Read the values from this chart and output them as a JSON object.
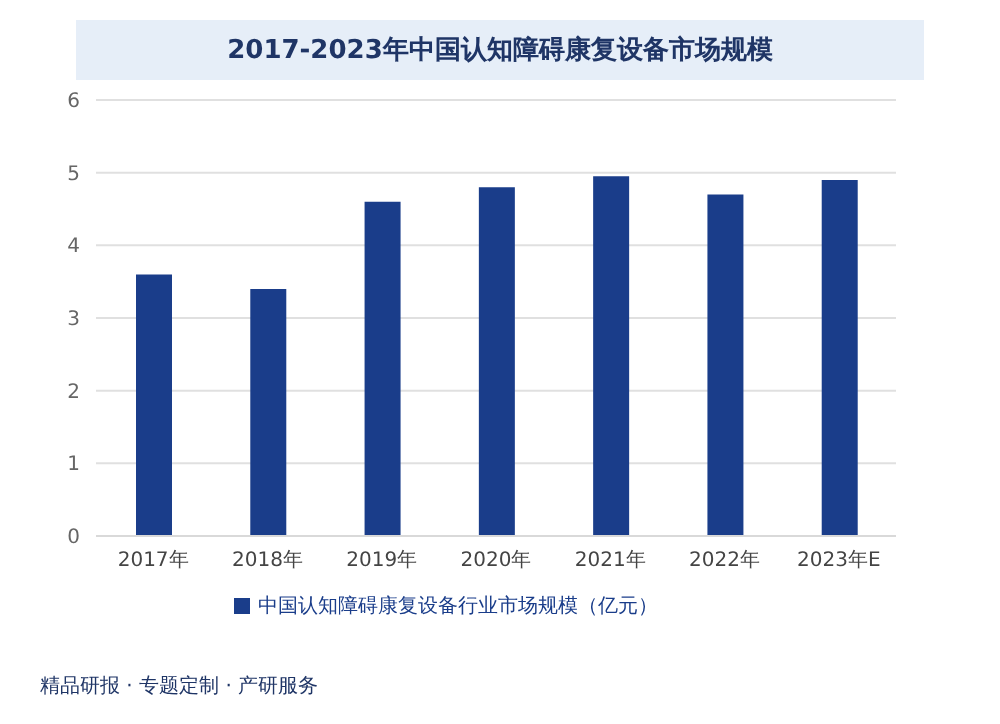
{
  "chart_data": {
    "type": "bar",
    "title": "2017-2023年中国认知障碍康复设备市场规模",
    "categories": [
      "2017年",
      "2018年",
      "2019年",
      "2020年",
      "2021年",
      "2022年",
      "2023年E"
    ],
    "series": [
      {
        "name": "中国认知障碍康复设备行业市场规模（亿元）",
        "color": "#1a3d8a",
        "values": [
          3.6,
          3.4,
          4.6,
          4.8,
          4.95,
          4.7,
          4.9
        ]
      }
    ],
    "ylim": [
      0,
      6
    ],
    "yticks": [
      0,
      1,
      2,
      3,
      4,
      5,
      6
    ],
    "grid": "y",
    "legend": "bottom",
    "annotations": [
      "精品研报 · 专题定制 · 产研服务"
    ]
  }
}
